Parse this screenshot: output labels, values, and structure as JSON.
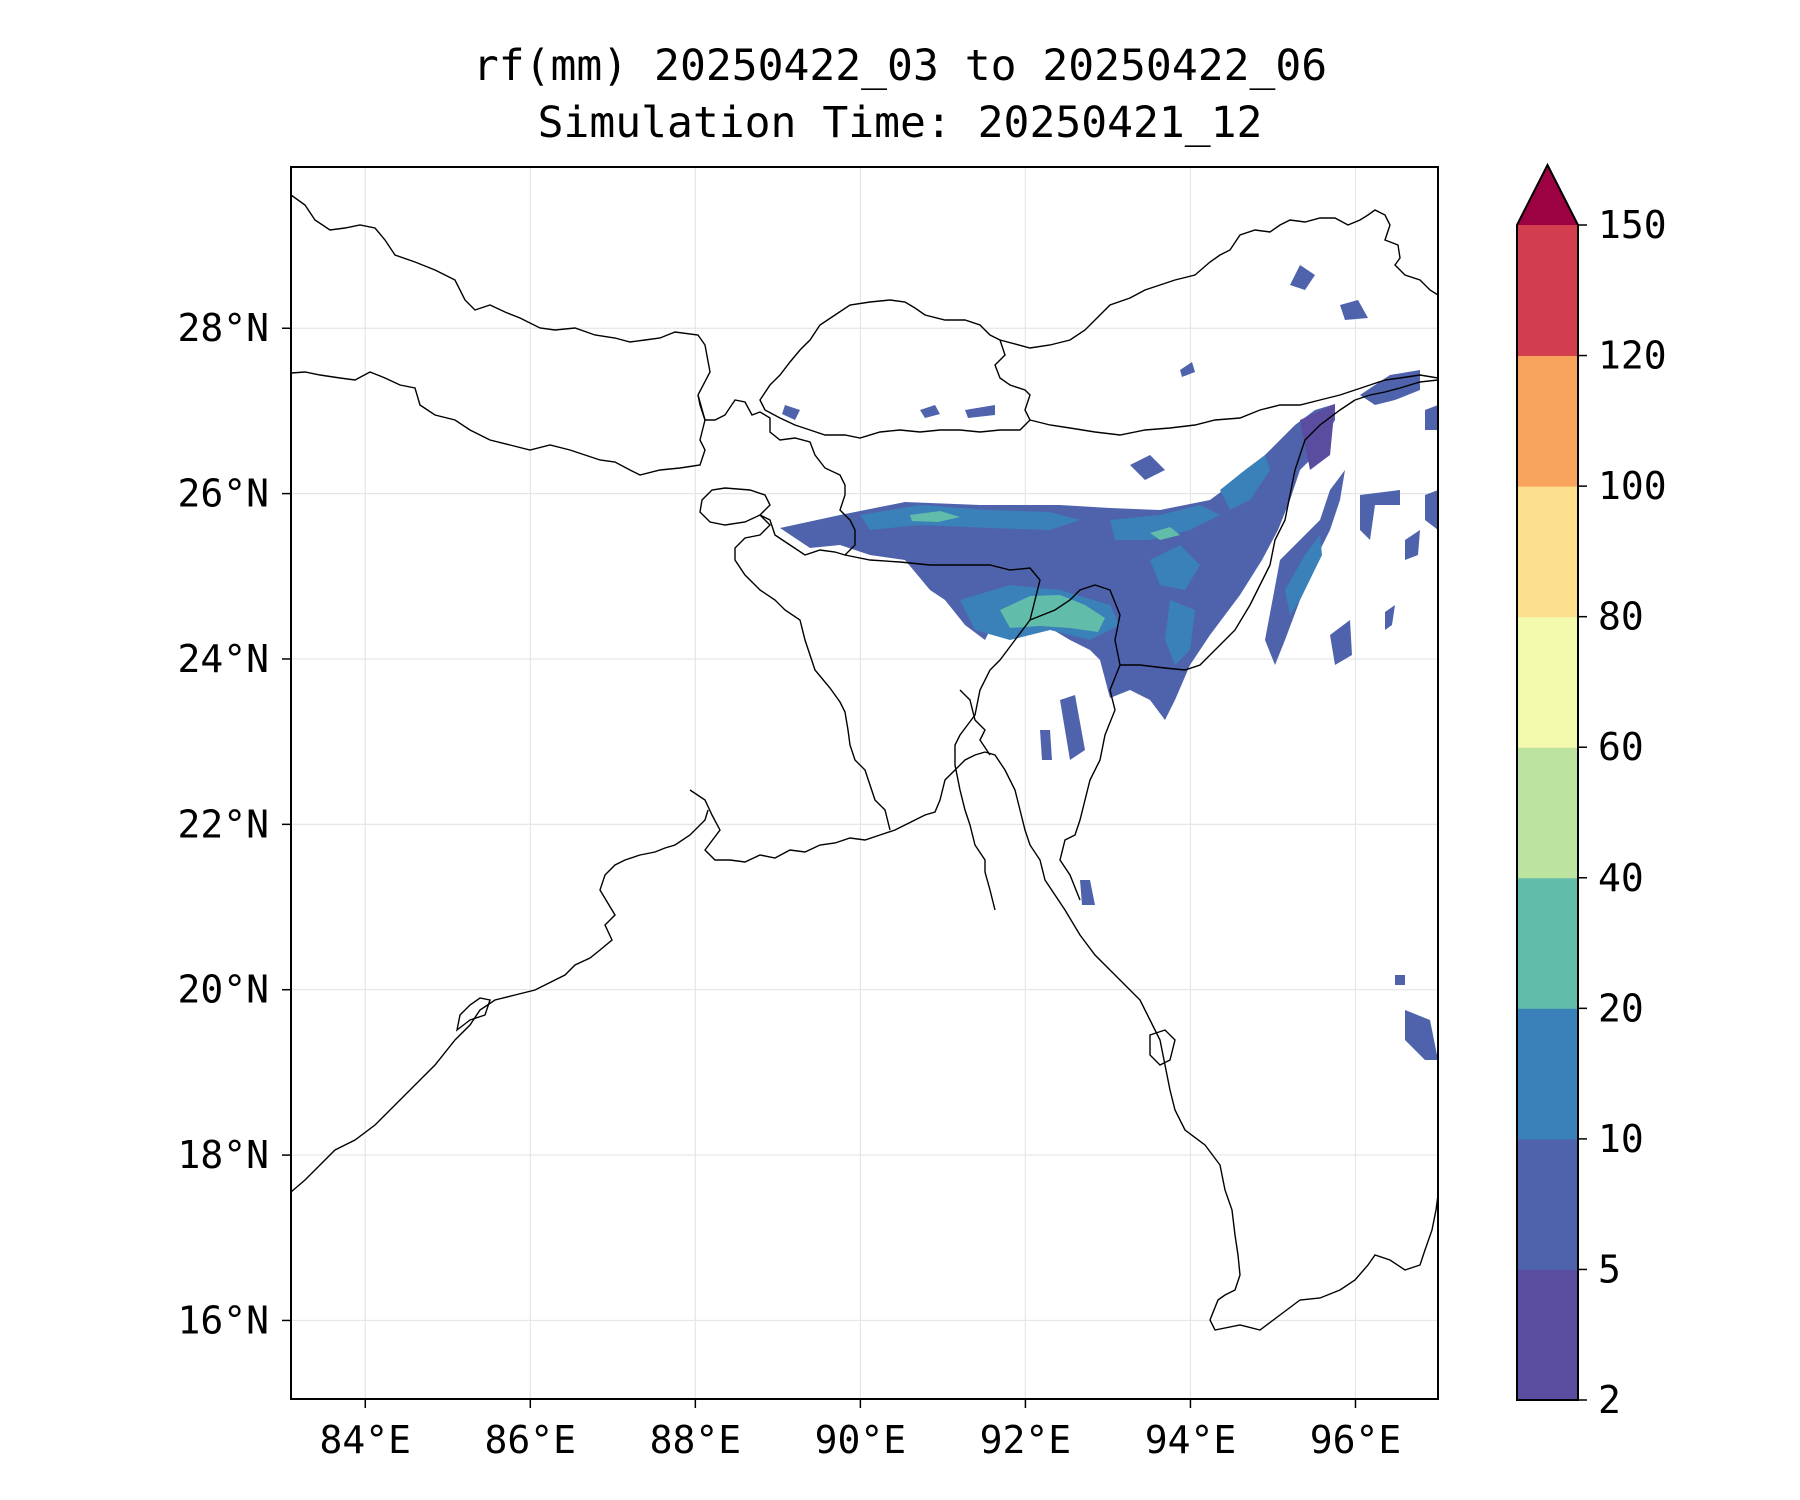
{
  "title": {
    "line1": "rf(mm) 20250422_03 to 20250422_06",
    "line2": "Simulation Time: 20250421_12"
  },
  "map": {
    "lon_range": [
      83.1,
      97.0
    ],
    "lat_range": [
      15.05,
      29.95
    ],
    "lon_ticks": [
      "84°E",
      "86°E",
      "88°E",
      "90°E",
      "92°E",
      "94°E",
      "96°E"
    ],
    "lat_ticks": [
      "16°N",
      "18°N",
      "20°N",
      "22°N",
      "24°N",
      "26°N",
      "28°N"
    ],
    "grid": true
  },
  "colorbar": {
    "levels": [
      "2",
      "5",
      "10",
      "20",
      "40",
      "60",
      "80",
      "100",
      "120",
      "150"
    ],
    "colors": [
      "#5a4c9e",
      "#4f63ad",
      "#3a80b9",
      "#61bda9",
      "#bde3a0",
      "#f3f9ad",
      "#fce08d",
      "#f8a35c",
      "#d33e4f"
    ],
    "extend_color": "#9c0142",
    "extend": "max"
  }
}
